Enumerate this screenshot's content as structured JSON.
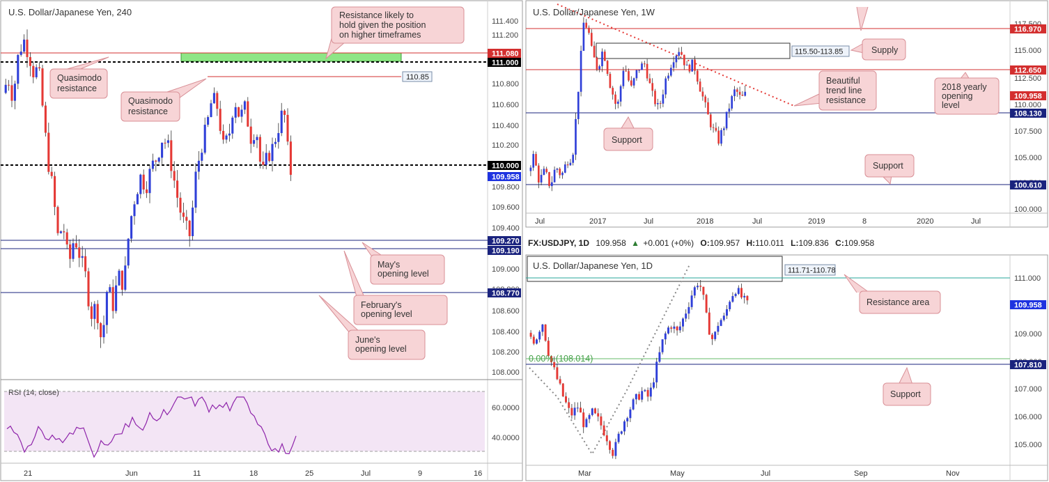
{
  "panels": {
    "h4": {
      "title": "U.S. Dollar/Japanese Yen, 240",
      "rsi_label": "RSI (14, close)",
      "annotations": {
        "resistance_note": "Resistance likely to hold given the position on higher timeframes",
        "quasimodo_left": "Quasimodo resistance",
        "quasimodo_mid": "Quasimodo resistance",
        "may_open": "May's opening level",
        "feb_open": "February's opening level",
        "june_open": "June's opening level"
      },
      "price_tags": {
        "r1": "111.080",
        "r2": "111.000",
        "r3": "110.000",
        "cur": "109.958",
        "s1": "109.270",
        "s2": "109.190",
        "s3": "108.770"
      },
      "level_box": "110.85"
    },
    "weekly": {
      "title": "U.S. Dollar/Japanese Yen, 1W",
      "annotations": {
        "supply": "Supply",
        "trendline": "Beautiful trend line resistance",
        "yearly": "2018 yearly opening level",
        "support_a": "Support",
        "support_b": "Support"
      },
      "zone_label": "115.50-113.85",
      "price_tags": {
        "a": "116.970",
        "b": "112.650",
        "c": "109.958",
        "d": "108.130",
        "e": "100.610"
      }
    },
    "daily": {
      "header": {
        "symbol": "FX:USDJPY, 1D",
        "last": "109.958",
        "chg": "+0.001 (+0%)",
        "o_lbl": "O:",
        "o": "109.957",
        "h_lbl": "H:",
        "h": "110.011",
        "l_lbl": "L:",
        "l": "109.836",
        "c_lbl": "C:",
        "c": "109.958"
      },
      "title": "U.S. Dollar/Japanese Yen, 1D",
      "zone_label": "111.71-110.78",
      "fib_label": "0.00% (108.014)",
      "annotations": {
        "resistance_area": "Resistance area",
        "support": "Support"
      },
      "price_tags": {
        "cur": "109.958",
        "sup": "107.810"
      }
    }
  },
  "chart_data": [
    {
      "type": "candlestick",
      "title": "U.S. Dollar/Japanese Yen, 240",
      "x_ticks": [
        "21",
        "Jun",
        "11",
        "18",
        "25",
        "Jul",
        "9",
        "16"
      ],
      "y_ticks": [
        "111.400",
        "111.200",
        "110.800",
        "110.600",
        "110.400",
        "110.200",
        "109.800",
        "109.600",
        "109.400",
        "109.000",
        "108.800",
        "108.600",
        "108.400",
        "108.200",
        "108.000"
      ],
      "ylim": [
        107.88,
        111.55
      ],
      "horizontal_levels": [
        {
          "value": 111.08,
          "color": "#d32f2f",
          "tag": "111.080"
        },
        {
          "value": 111.0,
          "color": "#000000",
          "style": "dashed",
          "tag": "111.000"
        },
        {
          "value": 110.85,
          "color": "#d32f2f",
          "tag": "110.85"
        },
        {
          "value": 110.0,
          "color": "#000000",
          "style": "dashed",
          "tag": "110.000"
        },
        {
          "value": 109.27,
          "color": "#1a237e",
          "tag": "109.270"
        },
        {
          "value": 109.19,
          "color": "#1a237e",
          "tag": "109.190"
        },
        {
          "value": 108.77,
          "color": "#1a237e",
          "tag": "108.770"
        }
      ],
      "resistance_zone": [
        111.0,
        111.08
      ],
      "close_path": [
        [
          0,
          110.75
        ],
        [
          8,
          110.9
        ],
        [
          15,
          110.7
        ],
        [
          22,
          111.1
        ],
        [
          30,
          111.3
        ],
        [
          38,
          111.15
        ],
        [
          45,
          110.95
        ],
        [
          52,
          111.0
        ],
        [
          58,
          110.6
        ],
        [
          65,
          110.1
        ],
        [
          72,
          109.8
        ],
        [
          80,
          109.3
        ],
        [
          88,
          109.4
        ],
        [
          96,
          109.0
        ],
        [
          104,
          109.3
        ],
        [
          112,
          109.1
        ],
        [
          120,
          108.9
        ],
        [
          128,
          108.5
        ],
        [
          136,
          108.6
        ],
        [
          144,
          108.2
        ],
        [
          152,
          108.8
        ],
        [
          160,
          108.6
        ],
        [
          168,
          108.9
        ],
        [
          176,
          108.8
        ],
        [
          184,
          109.4
        ],
        [
          192,
          109.7
        ],
        [
          200,
          109.9
        ],
        [
          208,
          109.8
        ],
        [
          216,
          110.0
        ],
        [
          224,
          110.1
        ],
        [
          232,
          110.3
        ],
        [
          240,
          110.2
        ],
        [
          248,
          109.9
        ],
        [
          256,
          109.6
        ],
        [
          264,
          109.4
        ],
        [
          272,
          109.3
        ],
        [
          280,
          109.9
        ],
        [
          288,
          110.2
        ],
        [
          296,
          110.4
        ],
        [
          304,
          110.7
        ],
        [
          312,
          110.6
        ],
        [
          320,
          110.2
        ],
        [
          328,
          110.3
        ],
        [
          336,
          110.7
        ],
        [
          344,
          110.5
        ],
        [
          352,
          110.6
        ],
        [
          360,
          110.3
        ],
        [
          368,
          110.4
        ],
        [
          376,
          109.9
        ],
        [
          384,
          110.1
        ],
        [
          392,
          110.2
        ],
        [
          400,
          110.4
        ],
        [
          408,
          110.6
        ],
        [
          413,
          110.2
        ],
        [
          418,
          109.95
        ]
      ],
      "rsi": {
        "label": "RSI (14, close)",
        "y_ticks": [
          "60.0000",
          "40.0000"
        ]
      }
    },
    {
      "type": "candlestick",
      "title": "U.S. Dollar/Japanese Yen, 1W",
      "x_ticks": [
        "Jul",
        "2017",
        "Jul",
        "2018",
        "Jul",
        "2019",
        "8",
        "2020",
        "Jul"
      ],
      "y_ticks": [
        "117.500",
        "115.000",
        "112.500",
        "110.000",
        "107.500",
        "105.000",
        "102.500",
        "100.000"
      ],
      "ylim": [
        98.8,
        118.8
      ],
      "horizontal_levels": [
        {
          "value": 116.97,
          "color": "#d32f2f",
          "tag": "116.970"
        },
        {
          "value": 112.65,
          "color": "#d32f2f",
          "tag": "112.650"
        },
        {
          "value": 108.13,
          "color": "#1a237e",
          "tag": "108.130"
        },
        {
          "value": 100.61,
          "color": "#1a237e",
          "tag": "100.610"
        }
      ],
      "zone": [
        113.85,
        115.5
      ],
      "close_path": [
        [
          0,
          102.5
        ],
        [
          8,
          104.0
        ],
        [
          16,
          101.5
        ],
        [
          24,
          102.5
        ],
        [
          32,
          101.0
        ],
        [
          40,
          103.0
        ],
        [
          48,
          102.0
        ],
        [
          56,
          103.5
        ],
        [
          64,
          104.0
        ],
        [
          68,
          107.0
        ],
        [
          74,
          112.0
        ],
        [
          80,
          117.0
        ],
        [
          86,
          116.5
        ],
        [
          92,
          114.0
        ],
        [
          100,
          112.5
        ],
        [
          108,
          114.5
        ],
        [
          118,
          111.0
        ],
        [
          128,
          108.5
        ],
        [
          138,
          113.0
        ],
        [
          148,
          110.5
        ],
        [
          158,
          112.5
        ],
        [
          168,
          113.0
        ],
        [
          178,
          110.0
        ],
        [
          188,
          108.5
        ],
        [
          198,
          111.5
        ],
        [
          208,
          113.5
        ],
        [
          218,
          114.5
        ],
        [
          228,
          112.5
        ],
        [
          238,
          113.0
        ],
        [
          248,
          110.5
        ],
        [
          258,
          108.0
        ],
        [
          266,
          106.5
        ],
        [
          274,
          105.5
        ],
        [
          282,
          107.0
        ],
        [
          290,
          109.0
        ],
        [
          298,
          110.5
        ],
        [
          306,
          109.5
        ],
        [
          312,
          109.958
        ]
      ]
    },
    {
      "type": "candlestick",
      "title": "U.S. Dollar/Japanese Yen, 1D",
      "x_ticks": [
        "Mar",
        "May",
        "Jul",
        "Sep",
        "Nov"
      ],
      "y_ticks": [
        "111.000",
        "109.000",
        "108.000",
        "107.000",
        "106.000",
        "105.000"
      ],
      "ylim": [
        104.6,
        111.5
      ],
      "horizontal_levels": [
        {
          "value": 110.95,
          "color": "#26a69a",
          "tag": ""
        },
        {
          "value": 108.014,
          "color": "#4caf50",
          "tag": "0.00% (108.014)"
        },
        {
          "value": 107.81,
          "color": "#1a237e",
          "tag": "107.810"
        }
      ],
      "zone": [
        110.78,
        111.71
      ],
      "close_path": [
        [
          0,
          109.0
        ],
        [
          10,
          108.7
        ],
        [
          20,
          109.4
        ],
        [
          30,
          108.2
        ],
        [
          40,
          107.5
        ],
        [
          50,
          106.8
        ],
        [
          60,
          106.2
        ],
        [
          70,
          106.5
        ],
        [
          80,
          105.8
        ],
        [
          90,
          106.3
        ],
        [
          100,
          106.0
        ],
        [
          110,
          105.5
        ],
        [
          120,
          104.9
        ],
        [
          130,
          105.7
        ],
        [
          140,
          106.3
        ],
        [
          150,
          106.7
        ],
        [
          160,
          107.0
        ],
        [
          170,
          106.8
        ],
        [
          180,
          107.8
        ],
        [
          190,
          108.8
        ],
        [
          200,
          109.3
        ],
        [
          210,
          109.0
        ],
        [
          220,
          109.6
        ],
        [
          230,
          110.3
        ],
        [
          240,
          110.8
        ],
        [
          246,
          110.2
        ],
        [
          252,
          109.3
        ],
        [
          260,
          108.7
        ],
        [
          268,
          109.4
        ],
        [
          276,
          109.5
        ],
        [
          284,
          110.2
        ],
        [
          292,
          110.5
        ],
        [
          300,
          110.2
        ],
        [
          308,
          109.958
        ]
      ]
    }
  ]
}
